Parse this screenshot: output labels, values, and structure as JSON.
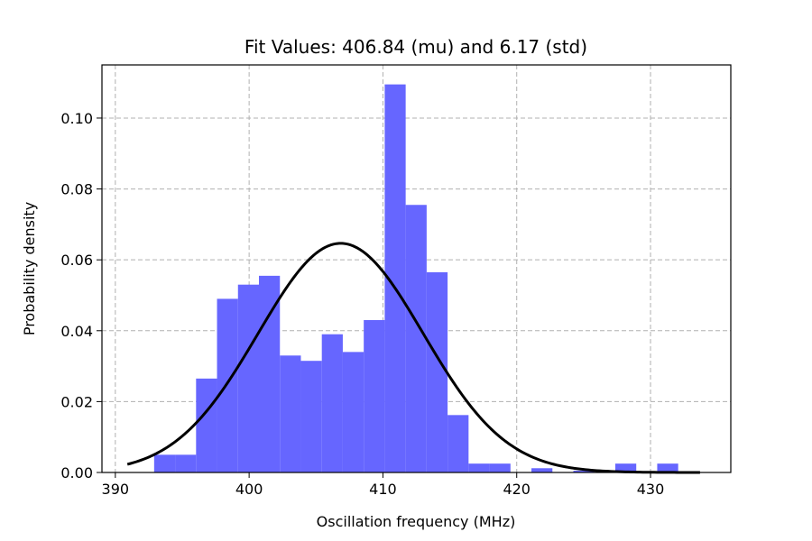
{
  "chart_data": {
    "type": "bar",
    "title": "Fit Values: 406.84 (mu) and 6.17 (std)",
    "xlabel": "Oscillation frequency (MHz)",
    "ylabel": "Probability density",
    "xlim": [
      389.0,
      436.0
    ],
    "ylim": [
      0.0,
      0.115
    ],
    "grid": true,
    "x_ticks": [
      390,
      400,
      410,
      420,
      430
    ],
    "x_tick_labels": [
      "390",
      "400",
      "410",
      "420",
      "430"
    ],
    "y_ticks": [
      0.0,
      0.02,
      0.04,
      0.06,
      0.08,
      0.1
    ],
    "y_tick_labels": [
      "0.00",
      "0.02",
      "0.04",
      "0.06",
      "0.08",
      "0.10"
    ],
    "histogram": {
      "bin_edges": [
        392.9,
        394.467,
        396.033,
        397.6,
        399.167,
        400.733,
        402.3,
        403.867,
        405.433,
        407.0,
        408.567,
        410.133,
        411.7,
        413.267,
        414.833,
        416.4,
        417.967,
        419.533,
        421.1,
        422.667,
        424.233,
        425.8,
        427.367,
        428.933,
        430.5,
        432.067
      ],
      "densities": [
        0.005,
        0.005,
        0.0265,
        0.049,
        0.053,
        0.0555,
        0.033,
        0.0315,
        0.039,
        0.034,
        0.043,
        0.1095,
        0.0755,
        0.0565,
        0.0162,
        0.0025,
        0.0025,
        0.0,
        0.0012,
        0.0,
        0.0005,
        0.0,
        0.0025,
        0.0,
        0.0025
      ],
      "color": "#6666ff"
    },
    "fit": {
      "mu": 406.84,
      "std": 6.17,
      "x_range": [
        390.9,
        433.7
      ],
      "color": "#000000"
    },
    "grid_color": "#b0b0b0"
  }
}
